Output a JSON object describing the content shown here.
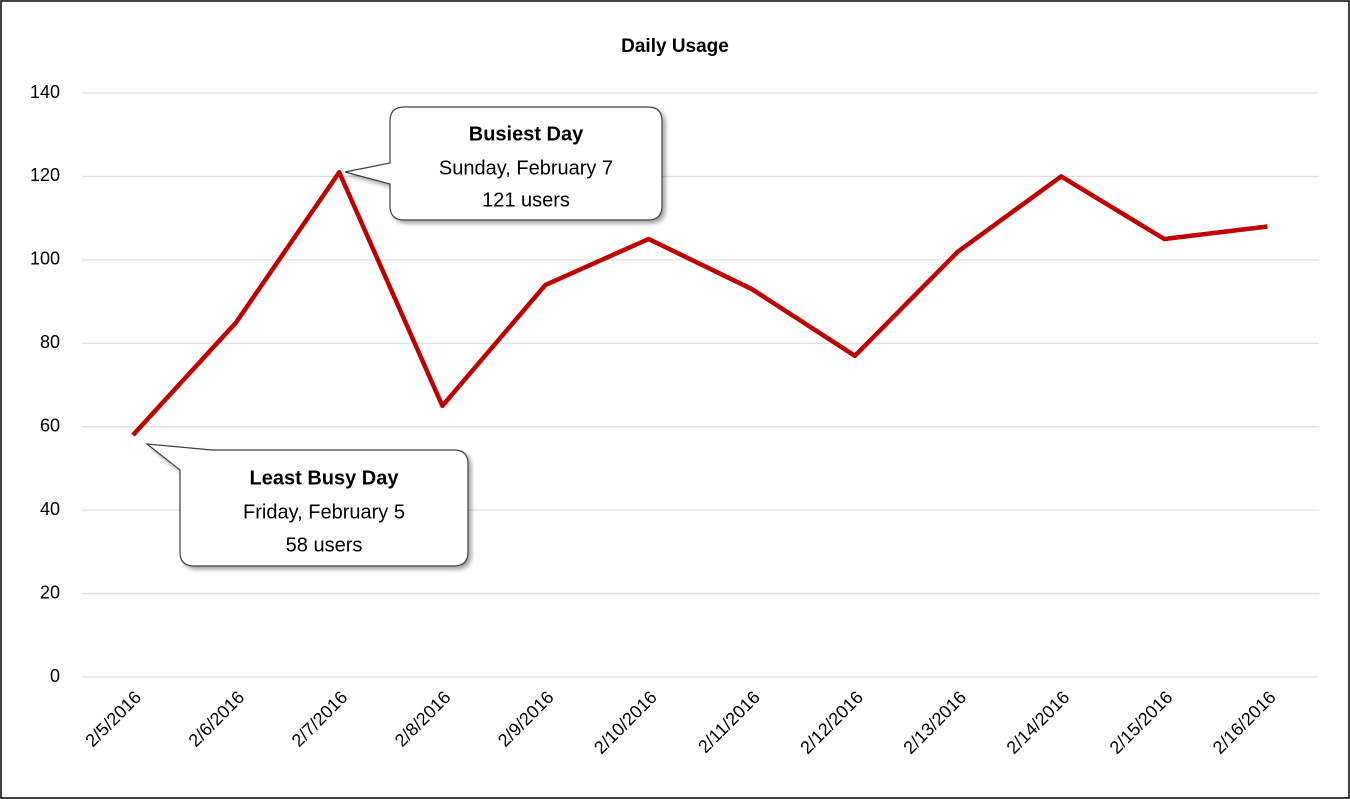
{
  "chart_data": {
    "type": "line",
    "title": "Daily Usage",
    "categories": [
      "2/5/2016",
      "2/6/2016",
      "2/7/2016",
      "2/8/2016",
      "2/9/2016",
      "2/10/2016",
      "2/11/2016",
      "2/12/2016",
      "2/13/2016",
      "2/14/2016",
      "2/15/2016",
      "2/16/2016"
    ],
    "values": [
      58,
      85,
      121,
      65,
      94,
      105,
      93,
      77,
      102,
      120,
      105,
      108
    ],
    "color": "#c00000",
    "ylim": [
      0,
      140
    ],
    "yticks": [
      0,
      20,
      40,
      60,
      80,
      100,
      120,
      140
    ],
    "grid": true,
    "annotations": [
      {
        "title": "Busiest Day",
        "lines": [
          "Sunday, February 7",
          "121 users"
        ]
      },
      {
        "title": "Least Busy Day",
        "lines": [
          "Friday, February 5",
          "58 users"
        ]
      }
    ]
  }
}
